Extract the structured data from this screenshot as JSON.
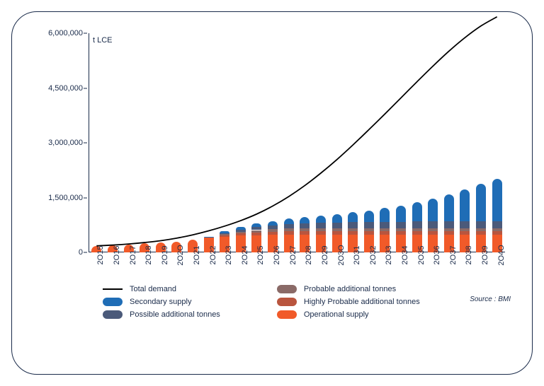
{
  "chart": {
    "type": "stacked-bar-with-line",
    "y_unit_label": "t LCE",
    "label_fontsize": 11,
    "tick_fontsize": 11,
    "background_color": "#ffffff",
    "frame_border_color": "#1a2b4a",
    "axis_color": "#1a2b4a",
    "yticks": [
      0,
      1500000,
      3000000,
      4500000,
      6000000
    ],
    "ytick_labels": [
      "0",
      "1,500,000",
      "3,000,000",
      "4,500,000",
      "6,000,000"
    ],
    "ylim": [
      0,
      6000000
    ],
    "years": [
      2015,
      2016,
      2017,
      2018,
      2019,
      2020,
      2021,
      2022,
      2023,
      2024,
      2025,
      2026,
      2027,
      2028,
      2029,
      2030,
      2031,
      2032,
      2033,
      2034,
      2035,
      2036,
      2037,
      2038,
      2039,
      2040
    ],
    "year_labels": [
      "2O15",
      "2O16",
      "2O17",
      "2O18",
      "2O19",
      "2O2O",
      "2O21",
      "2O22",
      "2O23",
      "2O24",
      "2O25",
      "2O26",
      "2O27",
      "2O28",
      "2O29",
      "2O3O",
      "2O31",
      "2O32",
      "2O33",
      "2O34",
      "2O35",
      "2O36",
      "2O37",
      "2O38",
      "2O39",
      "2O4O"
    ],
    "bar_width_ratio": 0.62,
    "series_order": [
      "operational",
      "highly_probable",
      "probable",
      "possible",
      "secondary"
    ],
    "series": {
      "operational": {
        "label": "Operational supply",
        "color": "#f15a29",
        "values": [
          170000,
          190000,
          215000,
          250000,
          280000,
          300000,
          340000,
          400000,
          430000,
          460000,
          470000,
          480000,
          490000,
          490000,
          490000,
          490000,
          490000,
          490000,
          490000,
          490000,
          490000,
          490000,
          490000,
          490000,
          490000,
          490000
        ]
      },
      "highly_probable": {
        "label": "Highly Probable additional tonnes",
        "color": "#b9553e",
        "values": [
          0,
          0,
          0,
          0,
          0,
          0,
          0,
          0,
          40000,
          60000,
          80000,
          90000,
          95000,
          95000,
          95000,
          95000,
          95000,
          95000,
          95000,
          95000,
          95000,
          95000,
          95000,
          95000,
          95000,
          95000
        ]
      },
      "probable": {
        "label": "Probable additional tonnes",
        "color": "#8a6a67",
        "values": [
          0,
          0,
          0,
          0,
          0,
          0,
          0,
          0,
          30000,
          50000,
          60000,
          70000,
          75000,
          75000,
          75000,
          75000,
          75000,
          75000,
          75000,
          75000,
          75000,
          75000,
          75000,
          75000,
          75000,
          75000
        ]
      },
      "possible": {
        "label": "Possible additional tonnes",
        "color": "#4b5a7a",
        "values": [
          0,
          0,
          0,
          0,
          0,
          0,
          0,
          0,
          30000,
          50000,
          80000,
          100000,
          120000,
          135000,
          150000,
          160000,
          165000,
          170000,
          175000,
          180000,
          185000,
          190000,
          195000,
          198000,
          200000,
          200000
        ]
      },
      "secondary": {
        "label": "Secondary supply",
        "color": "#1f6db6",
        "values": [
          0,
          0,
          0,
          0,
          0,
          0,
          0,
          30000,
          60000,
          80000,
          100000,
          120000,
          140000,
          170000,
          200000,
          230000,
          270000,
          320000,
          380000,
          440000,
          520000,
          620000,
          740000,
          870000,
          1010000,
          1160000
        ]
      }
    },
    "demand_line": {
      "label": "Total demand",
      "color": "#000000",
      "line_width": 1.8,
      "values": [
        180000,
        200000,
        230000,
        270000,
        320000,
        390000,
        480000,
        590000,
        720000,
        870000,
        1050000,
        1270000,
        1530000,
        1830000,
        2170000,
        2540000,
        2940000,
        3360000,
        3790000,
        4230000,
        4670000,
        5100000,
        5510000,
        5880000,
        6200000,
        6450000
      ]
    },
    "source_text": "Source : BMI",
    "legend_layout": {
      "columns": [
        [
          "demand_line",
          "secondary",
          "possible"
        ],
        [
          "probable",
          "highly_probable",
          "operational"
        ]
      ]
    }
  }
}
